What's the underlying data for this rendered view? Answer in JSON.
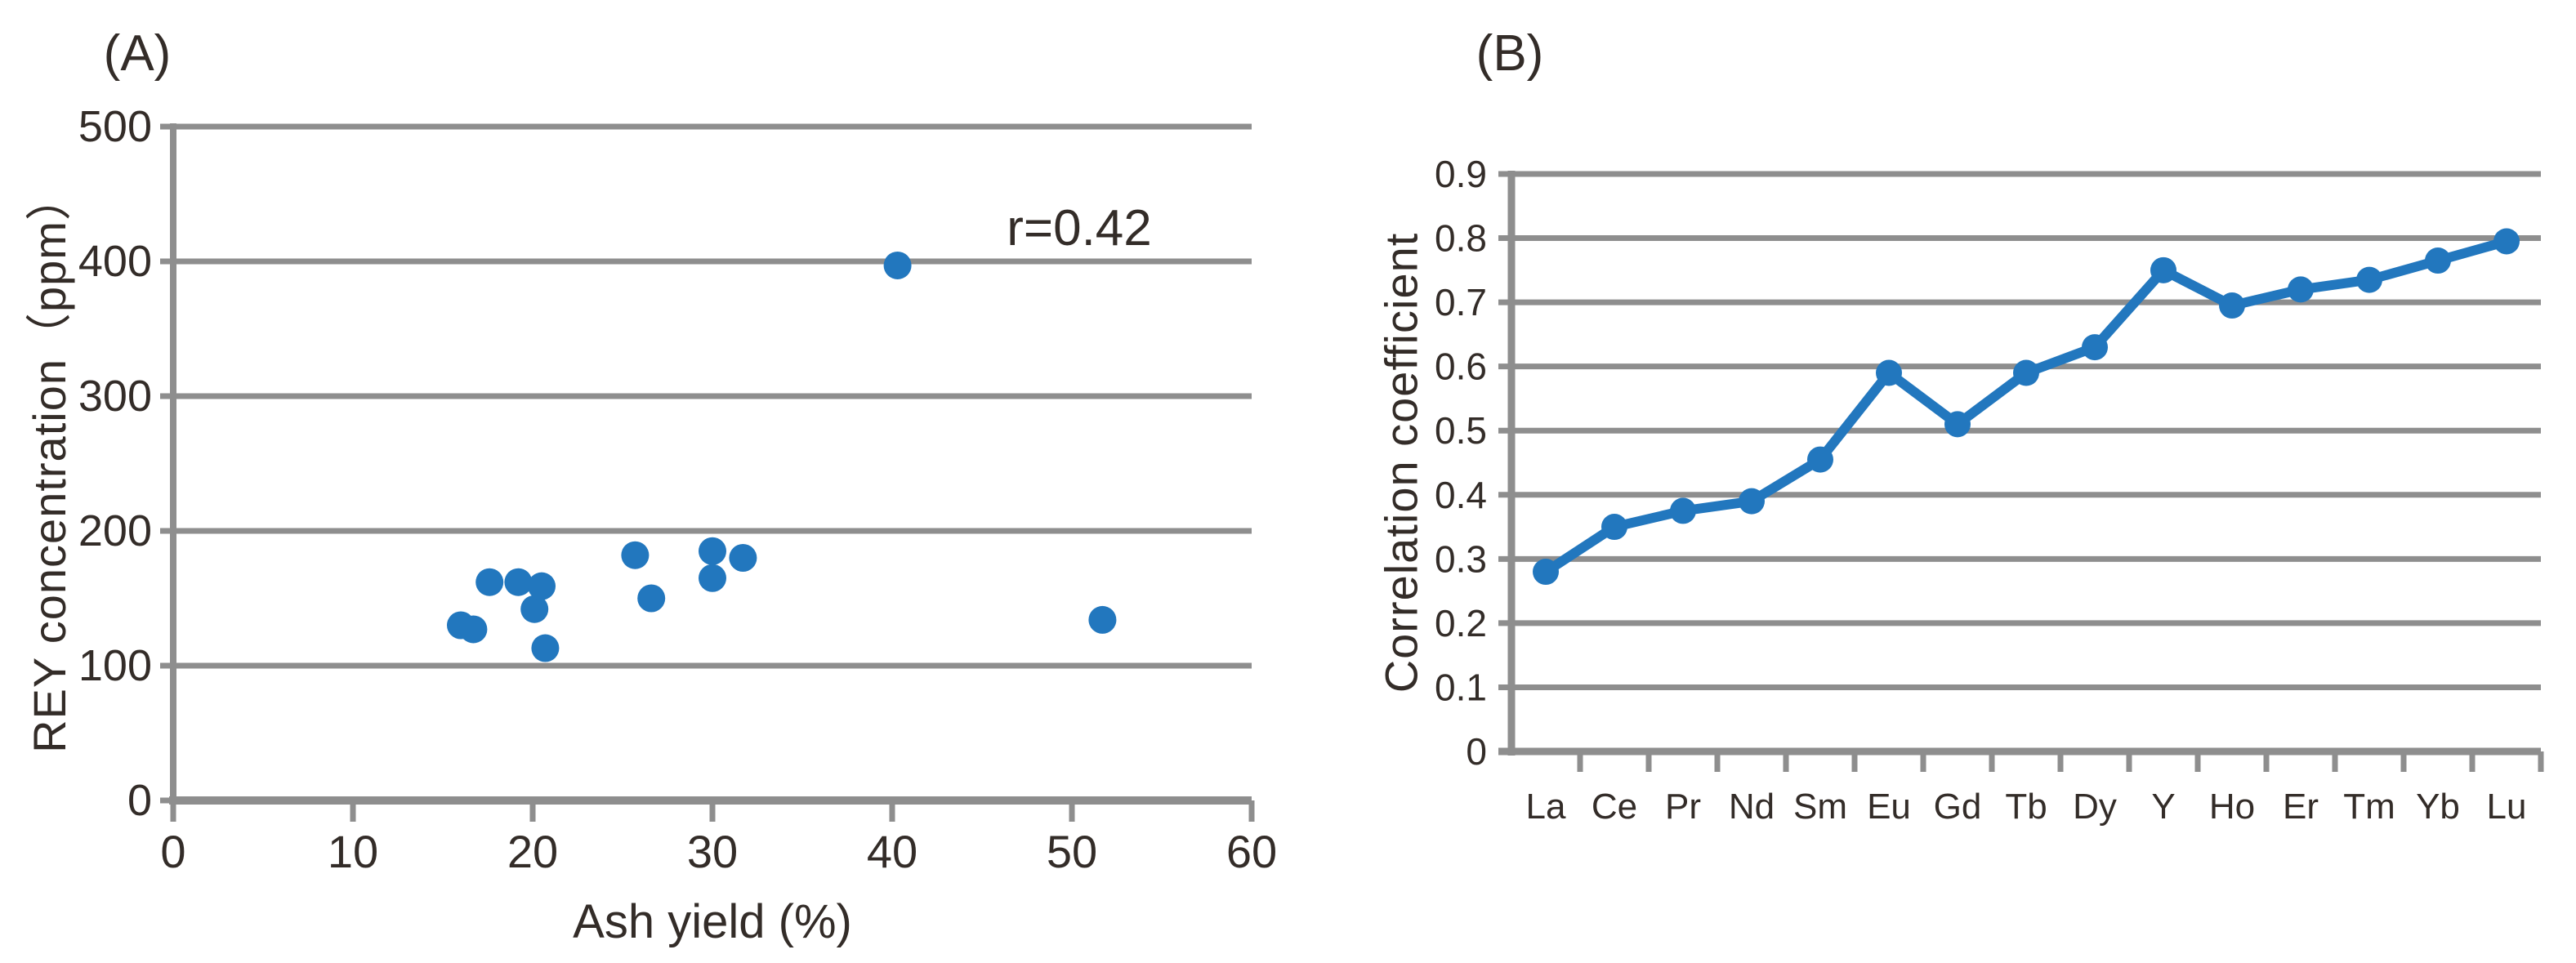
{
  "colors": {
    "series": "#2277BE",
    "grid": "#8E8E8E",
    "axis": "#8E8E8E",
    "text": "#332C28",
    "background": "#FFFFFF"
  },
  "chart_data": [
    {
      "type": "scatter",
      "panel_label": "(A)",
      "xlabel": "Ash yield (%)",
      "ylabel": "REY concentration（ppm）",
      "annotation": "r=0.42",
      "x_axis": {
        "min": 0,
        "max": 60,
        "tick_labels": [
          "0",
          "10",
          "20",
          "30",
          "40",
          "50",
          "60"
        ]
      },
      "y_axis": {
        "min": 0,
        "max": 500,
        "tick_labels": [
          "500",
          "400",
          "300",
          "200",
          "100",
          "0"
        ]
      },
      "points": [
        {
          "x": 16.0,
          "y": 130
        },
        {
          "x": 16.7,
          "y": 127
        },
        {
          "x": 17.6,
          "y": 162
        },
        {
          "x": 19.2,
          "y": 162
        },
        {
          "x": 20.1,
          "y": 142
        },
        {
          "x": 20.5,
          "y": 159
        },
        {
          "x": 20.7,
          "y": 113
        },
        {
          "x": 25.7,
          "y": 182
        },
        {
          "x": 26.6,
          "y": 150
        },
        {
          "x": 30.0,
          "y": 185
        },
        {
          "x": 30.0,
          "y": 165
        },
        {
          "x": 31.7,
          "y": 180
        },
        {
          "x": 40.3,
          "y": 397
        },
        {
          "x": 51.7,
          "y": 134
        }
      ],
      "grid": "horizontal",
      "legend": "none"
    },
    {
      "type": "line",
      "panel_label": "(B)",
      "xlabel": "",
      "ylabel": "Correlation coefficient",
      "categories": [
        "La",
        "Ce",
        "Pr",
        "Nd",
        "Sm",
        "Eu",
        "Gd",
        "Tb",
        "Dy",
        "Y",
        "Ho",
        "Er",
        "Tm",
        "Yb",
        "Lu"
      ],
      "values": [
        0.28,
        0.35,
        0.375,
        0.39,
        0.455,
        0.59,
        0.51,
        0.59,
        0.63,
        0.75,
        0.695,
        0.72,
        0.735,
        0.765,
        0.795
      ],
      "y_axis": {
        "min": 0,
        "max": 0.9,
        "tick_labels": [
          "0.9",
          "0.8",
          "0.7",
          "0.6",
          "0.5",
          "0.4",
          "0.3",
          "0.2",
          "0.1",
          "0"
        ]
      },
      "grid": "horizontal",
      "legend": "none"
    }
  ]
}
